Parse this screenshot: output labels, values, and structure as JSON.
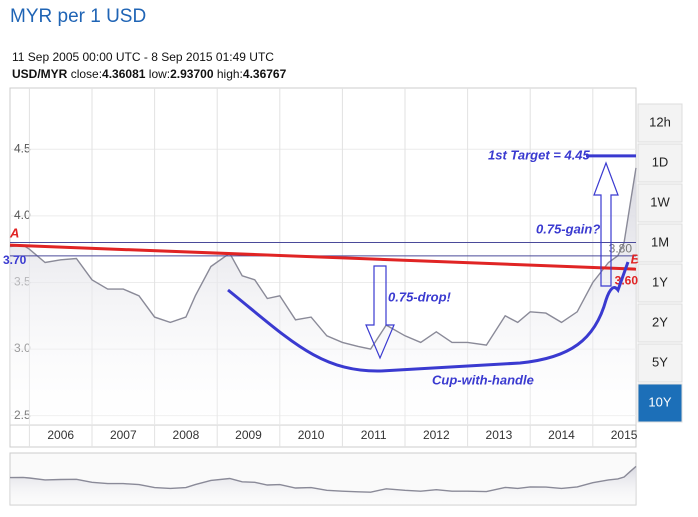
{
  "chart_data": {
    "type": "line",
    "title": "MYR per 1 USD",
    "subtitle": "11 Sep 2005 00:00 UTC - 8 Sep 2015 01:49 UTC",
    "symbol": "USD/MYR",
    "stats": [
      {
        "name": "close:",
        "value": "4.36081"
      },
      {
        "name": "low:",
        "value": "2.93700"
      },
      {
        "name": "high:",
        "value": "4.36767"
      }
    ],
    "range_buttons": [
      "12h",
      "1D",
      "1W",
      "1M",
      "1Y",
      "2Y",
      "5Y",
      "10Y"
    ],
    "selected_range": "10Y",
    "series": [
      {
        "name": "USD/MYR",
        "color": "#8a8a98",
        "x": [
          2005.69,
          2005.9,
          2006.0,
          2006.25,
          2006.5,
          2006.75,
          2007.0,
          2007.25,
          2007.5,
          2007.75,
          2008.0,
          2008.25,
          2008.5,
          2008.65,
          2008.9,
          2009.2,
          2009.4,
          2009.6,
          2009.8,
          2010.0,
          2010.25,
          2010.5,
          2010.75,
          2011.0,
          2011.25,
          2011.45,
          2011.7,
          2012.0,
          2012.25,
          2012.5,
          2012.75,
          2013.0,
          2013.3,
          2013.6,
          2013.8,
          2014.0,
          2014.25,
          2014.5,
          2014.75,
          2015.0,
          2015.25,
          2015.4,
          2015.5,
          2015.6,
          2015.69
        ],
        "values": [
          3.77,
          3.78,
          3.75,
          3.65,
          3.67,
          3.68,
          3.52,
          3.45,
          3.45,
          3.4,
          3.24,
          3.2,
          3.24,
          3.4,
          3.62,
          3.72,
          3.55,
          3.52,
          3.38,
          3.4,
          3.22,
          3.24,
          3.1,
          3.05,
          3.02,
          3.0,
          3.18,
          3.1,
          3.05,
          3.13,
          3.05,
          3.05,
          3.03,
          3.25,
          3.2,
          3.28,
          3.27,
          3.2,
          3.28,
          3.5,
          3.65,
          3.7,
          3.8,
          4.1,
          4.36
        ]
      }
    ],
    "xlim": [
      2005.69,
      2015.69
    ],
    "xticks": [
      2006,
      2007,
      2008,
      2009,
      2010,
      2011,
      2012,
      2013,
      2014,
      2015
    ],
    "ylim": [
      2.43,
      4.96
    ],
    "yticks": [
      2.5,
      {
        "value": 3,
        "label": "3.0"
      },
      3.5,
      {
        "value": 4,
        "label": "4.0"
      },
      4.5
    ],
    "grid": true,
    "reference_lines": [
      {
        "value": 3.8,
        "label": "3.80"
      },
      {
        "value": 3.7,
        "label": "3.70"
      }
    ],
    "trend_line": {
      "start_label": "A",
      "start": 3.78,
      "end_label": "B",
      "end": {
        "value": 3.6,
        "label": "3.60"
      }
    },
    "target": {
      "value": 4.45,
      "label": "1st Target = 4.45"
    },
    "annotations": [
      "0.75-drop!",
      "0.75-gain?",
      "Cup-with-handle"
    ]
  }
}
